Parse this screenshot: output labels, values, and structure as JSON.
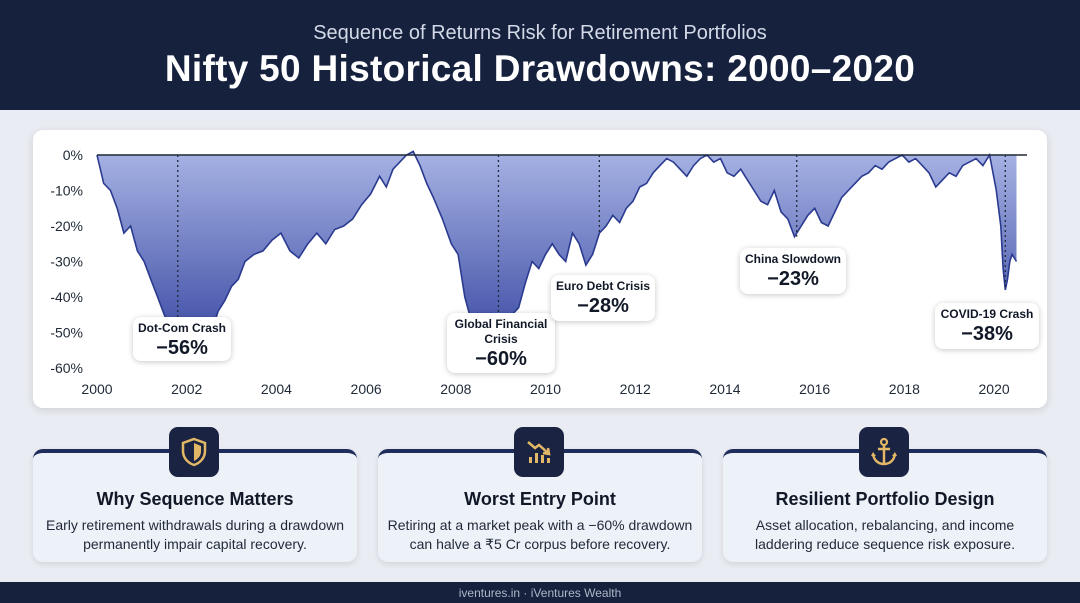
{
  "header": {
    "subtitle": "Sequence of Returns Risk for Retirement Portfolios",
    "title": "Nifty 50 Historical Drawdowns: 2000–2020"
  },
  "chart_data": {
    "type": "area",
    "y_tick_labels": [
      "0%",
      "-10%",
      "-20%",
      "-30%",
      "-40%",
      "-50%",
      "-60%"
    ],
    "x_tick_labels": [
      "2000",
      "2002",
      "2004",
      "2006",
      "2008",
      "2010",
      "2012",
      "2014",
      "2016",
      "2018",
      "2020"
    ],
    "ylim": [
      -60,
      0
    ],
    "xlim": [
      2000,
      2020.6
    ],
    "grid": false,
    "series": [
      {
        "x": [
          2000,
          2000.15,
          2000.3,
          2000.45,
          2000.6,
          2000.75,
          2000.9,
          2001.05,
          2001.2,
          2001.35,
          2001.5,
          2001.65,
          2001.8,
          2001.95,
          2002.1,
          2002.25,
          2002.4,
          2002.55,
          2002.7,
          2002.85,
          2003,
          2003.15,
          2003.3,
          2003.5,
          2003.7,
          2003.9,
          2004.1,
          2004.3,
          2004.5,
          2004.7,
          2004.9,
          2005.1,
          2005.3,
          2005.5,
          2005.7,
          2005.9,
          2006.1,
          2006.3,
          2006.45,
          2006.6,
          2006.75,
          2006.9,
          2007.05,
          2007.2,
          2007.35,
          2007.5,
          2007.7,
          2007.9,
          2008.05,
          2008.2,
          2008.35,
          2008.5,
          2008.65,
          2008.8,
          2008.95,
          2009.1,
          2009.25,
          2009.4,
          2009.55,
          2009.7,
          2009.85,
          2010,
          2010.15,
          2010.3,
          2010.45,
          2010.6,
          2010.75,
          2010.9,
          2011.05,
          2011.2,
          2011.35,
          2011.5,
          2011.65,
          2011.8,
          2011.95,
          2012.1,
          2012.25,
          2012.4,
          2012.55,
          2012.7,
          2012.85,
          2013,
          2013.15,
          2013.3,
          2013.45,
          2013.6,
          2013.75,
          2013.9,
          2014.05,
          2014.2,
          2014.35,
          2014.5,
          2014.65,
          2014.8,
          2014.95,
          2015.1,
          2015.25,
          2015.4,
          2015.55,
          2015.7,
          2015.85,
          2016,
          2016.15,
          2016.3,
          2016.45,
          2016.6,
          2016.75,
          2016.9,
          2017.05,
          2017.2,
          2017.35,
          2017.5,
          2017.65,
          2017.8,
          2017.95,
          2018.1,
          2018.25,
          2018.4,
          2018.55,
          2018.7,
          2018.85,
          2019,
          2019.15,
          2019.3,
          2019.45,
          2019.6,
          2019.75,
          2019.9,
          2020.05,
          2020.15,
          2020.2,
          2020.25,
          2020.3,
          2020.35,
          2020.4,
          2020.45,
          2020.5
        ],
        "y": [
          0,
          -8,
          -10,
          -15,
          -22,
          -20,
          -27,
          -30,
          -35,
          -40,
          -45,
          -49,
          -55,
          -56,
          -53,
          -50,
          -46,
          -50,
          -44,
          -41,
          -37,
          -35,
          -30,
          -28,
          -27,
          -24,
          -22,
          -27,
          -29,
          -25,
          -22,
          -25,
          -21,
          -20,
          -18,
          -14,
          -11,
          -6,
          -9,
          -4,
          -2,
          0,
          1,
          -3,
          -8,
          -12,
          -18,
          -25,
          -28,
          -40,
          -47,
          -52,
          -56,
          -60,
          -58,
          -50,
          -45,
          -43,
          -36,
          -30,
          -32,
          -28,
          -25,
          -28,
          -30,
          -22,
          -25,
          -31,
          -28,
          -22,
          -20,
          -17,
          -19,
          -15,
          -13,
          -9,
          -8,
          -5,
          -3,
          -1,
          -2,
          -4,
          -6,
          -3,
          -1,
          0,
          -2,
          -1,
          -5,
          -6,
          -4,
          -7,
          -10,
          -13,
          -14,
          -10,
          -16,
          -18,
          -23,
          -20,
          -17,
          -15,
          -19,
          -20,
          -16,
          -12,
          -10,
          -8,
          -6,
          -5,
          -3,
          -4,
          -2,
          -1,
          0,
          -2,
          -1,
          -3,
          -5,
          -9,
          -7,
          -5,
          -6,
          -3,
          -2,
          -1,
          -3,
          0,
          -10,
          -20,
          -32,
          -38,
          -35,
          -30,
          -28,
          -29,
          -30
        ]
      }
    ],
    "markers": [
      {
        "x": 2001.8,
        "label": "Dot-Com Crash",
        "value": "−56%"
      },
      {
        "x": 2008.95,
        "label": "Global Financial Crisis",
        "value": "−60%"
      },
      {
        "x": 2011.2,
        "label": "Euro Debt Crisis",
        "value": "−28%"
      },
      {
        "x": 2015.6,
        "label": "China Slowdown",
        "value": "−23%"
      },
      {
        "x": 2020.25,
        "label": "COVID-19 Crash",
        "value": "−38%"
      }
    ],
    "colors": {
      "fill_top": "#a7b3e4",
      "fill_bottom": "#2f3f9c",
      "line": "#2a3a8f",
      "baseline": "#1f2937"
    }
  },
  "callouts": [
    {
      "label": "Dot-Com Crash",
      "value": "−56%"
    },
    {
      "label": "Global Financial Crisis",
      "value": "−60%"
    },
    {
      "label": "Euro Debt Crisis",
      "value": "−28%"
    },
    {
      "label": "China Slowdown",
      "value": "−23%"
    },
    {
      "label": "COVID-19 Crash",
      "value": "−38%"
    }
  ],
  "cards": [
    {
      "icon": "shield-icon",
      "title": "Why Sequence Matters",
      "text": "Early retirement withdrawals during a drawdown permanently impair capital recovery."
    },
    {
      "icon": "falling-chart-icon",
      "title": "Worst Entry Point",
      "text": "Retiring at a market peak with a −60% drawdown can halve a ₹5 Cr corpus before recovery."
    },
    {
      "icon": "anchor-icon",
      "title": "Resilient Portfolio Design",
      "text": "Asset allocation, rebalancing, and income laddering reduce sequence risk exposure."
    }
  ],
  "footer": {
    "text": "iventures.in · iVentures Wealth"
  }
}
